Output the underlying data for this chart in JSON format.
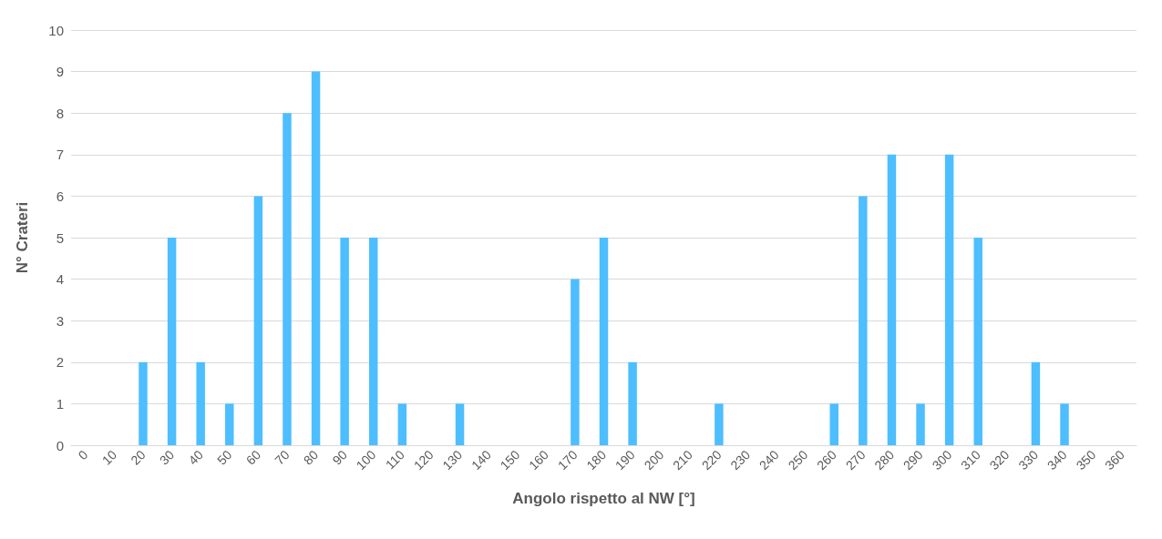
{
  "chart_data": {
    "type": "bar",
    "xlabel": "Angolo rispetto al NW [°]",
    "ylabel": "N° Crateri",
    "categories": [
      "0",
      "10",
      "20",
      "30",
      "40",
      "50",
      "60",
      "70",
      "80",
      "90",
      "100",
      "110",
      "120",
      "130",
      "140",
      "150",
      "160",
      "170",
      "180",
      "190",
      "200",
      "210",
      "220",
      "230",
      "240",
      "250",
      "260",
      "270",
      "280",
      "290",
      "300",
      "310",
      "320",
      "330",
      "340",
      "350",
      "360"
    ],
    "values": [
      0,
      0,
      2,
      5,
      2,
      1,
      6,
      8,
      9,
      5,
      5,
      1,
      0,
      1,
      0,
      0,
      0,
      4,
      5,
      2,
      0,
      0,
      1,
      0,
      0,
      0,
      1,
      6,
      7,
      1,
      7,
      5,
      0,
      2,
      1,
      0,
      0
    ],
    "color": "#4dbeff",
    "ylim": [
      0,
      10
    ],
    "yticks": [
      0,
      1,
      2,
      3,
      4,
      5,
      6,
      7,
      8,
      9,
      10
    ],
    "grid": "y"
  }
}
